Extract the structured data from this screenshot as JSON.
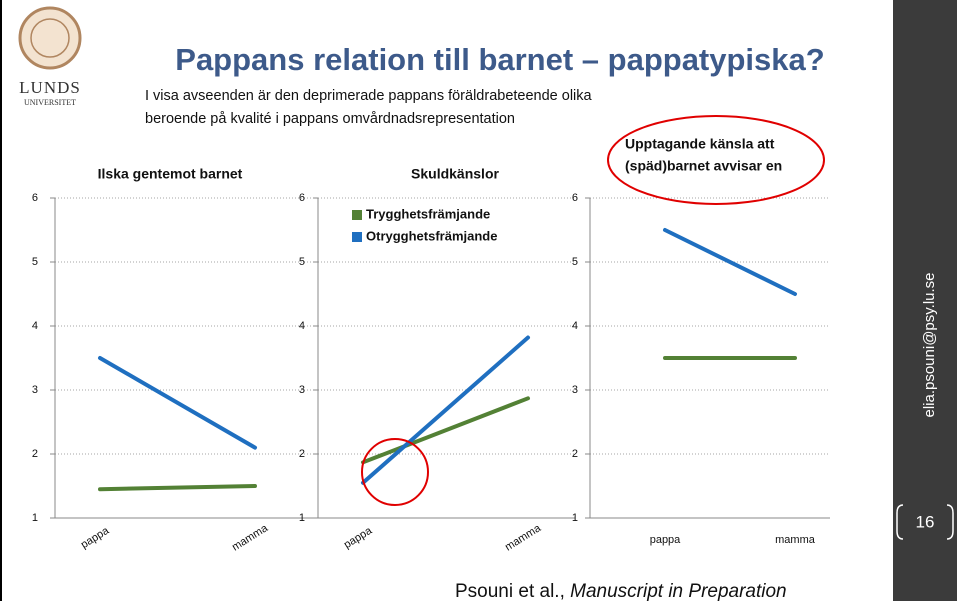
{
  "logo": {
    "name": "LUNDS",
    "sub": "UNIVERSITET"
  },
  "title": "Pappans relation till barnet – pappatypiska?",
  "subtitle": [
    "I visa avseenden är den deprimerade pappans föräldrabeteende olika",
    "beroende på kvalité i pappans omvårdnadsrepresentation"
  ],
  "email": "elia.psouni@psy.lu.se",
  "page_number": "16",
  "citation": {
    "authors": "Psouni et al.,",
    "work": "Manuscript in Preparation"
  },
  "chart_data": [
    {
      "type": "line",
      "title": [
        "Ilska gentemot barnet"
      ],
      "categories": [
        "pappa",
        "mamma"
      ],
      "series": [
        {
          "color": "#538135",
          "values": [
            1.45,
            1.5
          ]
        },
        {
          "color": "#1f6fc0",
          "values": [
            3.5,
            2.1
          ]
        }
      ],
      "ylim": [
        1,
        6
      ],
      "yticks": [
        1,
        2,
        3,
        4,
        5,
        6
      ],
      "grid": true
    },
    {
      "type": "line",
      "title": [
        "Skuldkänslor"
      ],
      "categories": [
        "pappa",
        "mamma"
      ],
      "series": [
        {
          "name": "Trygghetsfrämjande",
          "color": "#538135",
          "values": [
            1.87,
            2.87
          ]
        },
        {
          "name": "Otrygghetsfrämjande",
          "color": "#1f6fc0",
          "values": [
            1.55,
            3.82
          ]
        }
      ],
      "ylim": [
        1,
        6
      ],
      "yticks": [
        1,
        2,
        3,
        4,
        5,
        6
      ],
      "grid": true,
      "legend": "upper left"
    },
    {
      "type": "line",
      "title": [
        "Upptagande känsla att",
        "(späd)barnet avvisar en"
      ],
      "categories": [
        "pappa",
        "mamma"
      ],
      "series": [
        {
          "color": "#538135",
          "values": [
            3.5,
            3.5
          ]
        },
        {
          "color": "#1f6fc0",
          "values": [
            5.5,
            4.5
          ]
        }
      ],
      "ylim": [
        1,
        6
      ],
      "yticks": [
        1,
        2,
        3,
        4,
        5,
        6
      ],
      "grid": true
    }
  ]
}
